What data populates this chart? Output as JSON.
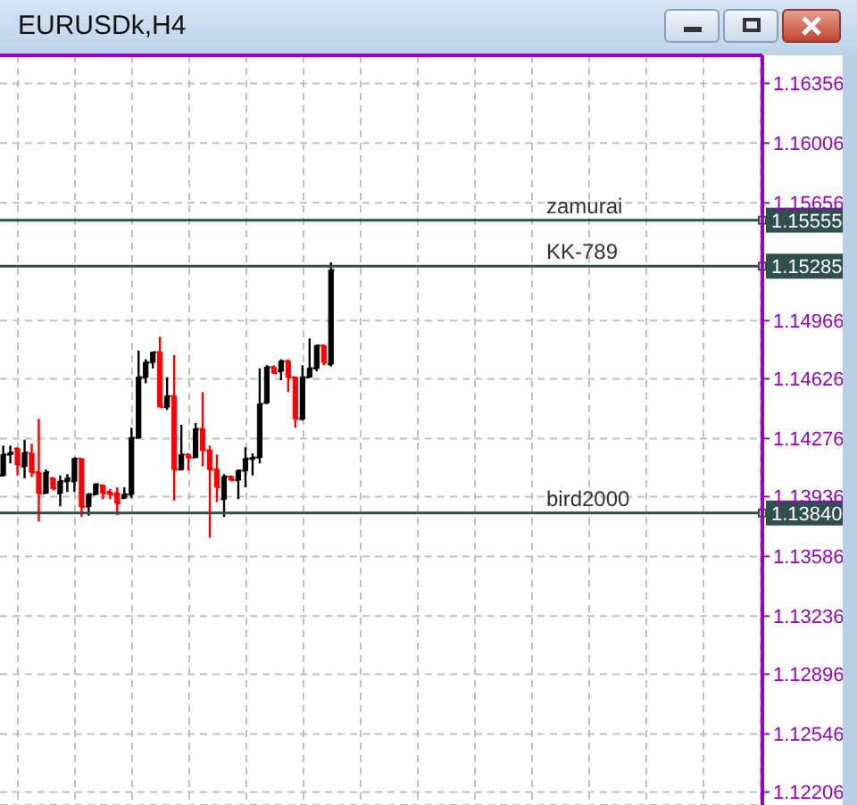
{
  "chart_data": {
    "type": "candlestick",
    "title": "EURUSDk,H4",
    "categories": [
      null,
      null,
      null,
      null,
      null,
      null,
      null,
      null,
      null,
      null,
      null,
      null,
      null,
      null,
      null,
      null,
      null,
      null,
      null,
      null,
      null,
      null,
      null,
      null,
      null,
      null,
      null,
      null,
      null,
      null,
      null,
      null,
      null,
      null,
      null,
      null,
      null,
      null,
      null,
      null,
      null,
      null,
      null,
      null,
      null,
      null,
      null,
      null,
      null,
      null,
      null,
      null,
      null,
      null,
      null,
      null,
      null,
      null,
      null,
      null,
      null,
      null,
      null,
      null,
      null,
      null,
      null,
      null,
      null,
      null,
      null,
      null,
      null,
      null,
      null,
      null,
      null,
      null,
      null,
      null,
      null,
      null,
      null,
      null,
      null,
      null,
      null,
      null,
      null,
      null,
      null,
      null,
      null,
      null,
      null,
      null,
      null,
      null,
      null,
      null,
      null,
      null,
      null,
      null,
      null,
      null,
      null
    ],
    "ohlc": [
      [
        1.1406,
        1.14235,
        1.14053,
        1.14182
      ],
      [
        1.14182,
        1.14235,
        1.1413,
        1.14193
      ],
      [
        1.14217,
        1.14224,
        1.1406,
        1.14123
      ],
      [
        1.14113,
        1.14269,
        1.14043,
        1.14193
      ],
      [
        1.14189,
        1.14245,
        1.1405,
        1.14078
      ],
      [
        1.14078,
        1.14391,
        1.13789,
        1.13956
      ],
      [
        1.13956,
        1.14095,
        1.13956,
        1.14078
      ],
      [
        1.14043,
        1.1405,
        1.13973,
        1.13984
      ],
      [
        1.13956,
        1.1406,
        1.13879,
        1.14026
      ],
      [
        1.14026,
        1.14067,
        1.13963,
        1.14043
      ],
      [
        1.14026,
        1.14165,
        1.13963,
        1.14158
      ],
      [
        1.14158,
        1.14158,
        1.13817,
        1.13876
      ],
      [
        1.13879,
        1.13956,
        1.13824,
        1.13949
      ],
      [
        1.13949,
        1.14015,
        1.13946,
        1.14008
      ],
      [
        1.14001,
        1.14008,
        1.13921,
        1.13956
      ],
      [
        1.13963,
        1.1398,
        1.13921,
        1.13949
      ],
      [
        1.13956,
        1.13991,
        1.13827,
        1.13897
      ],
      [
        1.13928,
        1.13991,
        1.13921,
        1.13949
      ],
      [
        1.13949,
        1.14339,
        1.13928,
        1.1428
      ],
      [
        1.1428,
        1.14792,
        1.14276,
        1.14635
      ],
      [
        1.14635,
        1.1474,
        1.146,
        1.14722
      ],
      [
        1.14722,
        1.14785,
        1.14687,
        1.14781
      ],
      [
        1.14781,
        1.14872,
        1.14461,
        1.14461
      ],
      [
        1.14461,
        1.14635,
        1.14444,
        1.14524
      ],
      [
        1.14524,
        1.14764,
        1.13914,
        1.14095
      ],
      [
        1.14095,
        1.14357,
        1.14088,
        1.14182
      ],
      [
        1.14182,
        1.14189,
        1.14088,
        1.14165
      ],
      [
        1.14165,
        1.14367,
        1.14165,
        1.14332
      ],
      [
        1.14332,
        1.14548,
        1.14113,
        1.14207
      ],
      [
        1.14207,
        1.14235,
        1.13695,
        1.14095
      ],
      [
        1.14095,
        1.14182,
        1.13904,
        1.13991
      ],
      [
        1.13921,
        1.14067,
        1.13817,
        1.14053
      ],
      [
        1.14053,
        1.1406,
        1.14026,
        1.14033
      ],
      [
        1.14033,
        1.14095,
        1.13921,
        1.14088
      ],
      [
        1.14088,
        1.14224,
        1.13991,
        1.14158
      ],
      [
        1.14158,
        1.14189,
        1.1406,
        1.14165
      ],
      [
        1.14165,
        1.14687,
        1.1413,
        1.14478
      ],
      [
        1.14485,
        1.14705,
        1.14478,
        1.14694
      ],
      [
        1.14694,
        1.14705,
        1.14653,
        1.1466
      ],
      [
        1.1467,
        1.1474,
        1.14618,
        1.14729
      ],
      [
        1.14729,
        1.1474,
        1.14548,
        1.14635
      ],
      [
        1.14635,
        1.14635,
        1.14339,
        1.14391
      ],
      [
        1.14391,
        1.14705,
        1.14381,
        1.14635
      ],
      [
        1.14635,
        1.14862,
        1.14635,
        1.14687
      ],
      [
        1.14687,
        1.14827,
        1.1467,
        1.1482
      ],
      [
        1.1482,
        1.14827,
        1.14705,
        1.14722
      ],
      [
        1.14712,
        1.15307,
        1.14698,
        1.15262
      ],
      null,
      null,
      null,
      null,
      null,
      null,
      null,
      null,
      null,
      null,
      null,
      null,
      null,
      null,
      null,
      null,
      null,
      null,
      null,
      null,
      null,
      null,
      null,
      null,
      null,
      null,
      null,
      null,
      null,
      null,
      null,
      null,
      null,
      null,
      null,
      null,
      null,
      null,
      null,
      null,
      null,
      null,
      null,
      null,
      null,
      null,
      null,
      null,
      null,
      null,
      null,
      null,
      null,
      null,
      null,
      null,
      null,
      null,
      null,
      null
    ],
    "colors": [
      "#000000",
      "#000000",
      "#ff0000",
      "#000000",
      "#ff0000",
      "#ff0000",
      "#000000",
      "#ff0000",
      "#000000",
      "#000000",
      "#000000",
      "#ff0000",
      "#000000",
      "#000000",
      "#ff0000",
      "#ff0000",
      "#ff0000",
      "#000000",
      "#000000",
      "#000000",
      "#000000",
      "#000000",
      "#ff0000",
      "#000000",
      "#ff0000",
      "#000000",
      "#ff0000",
      "#000000",
      "#ff0000",
      "#ff0000",
      "#ff0000",
      "#000000",
      "#ff0000",
      "#000000",
      "#000000",
      "#000000",
      "#000000",
      "#000000",
      "#ff0000",
      "#000000",
      "#ff0000",
      "#ff0000",
      "#000000",
      "#000000",
      "#000000",
      "#ff0000",
      "#000000",
      null,
      null,
      null,
      null,
      null,
      null,
      null,
      null,
      null,
      null,
      null,
      null,
      null,
      null,
      null,
      null,
      null,
      null,
      null,
      null,
      null,
      null,
      null,
      null,
      null,
      null,
      null,
      null,
      null,
      null,
      null,
      null,
      null,
      null,
      null,
      null,
      null,
      null,
      null,
      null,
      null,
      null,
      null,
      null,
      null,
      null,
      null,
      null,
      null,
      null,
      null,
      null,
      null,
      null,
      null,
      null,
      null,
      null,
      null,
      null
    ],
    "ylim": [
      1.1213,
      1.1652
    ],
    "yticks": [
      1.12206,
      1.12546,
      1.12896,
      1.13236,
      1.13586,
      1.13936,
      1.14276,
      1.14626,
      1.14966,
      1.15656,
      1.16006,
      1.16356
    ],
    "ref_lines": [
      {
        "axis": "y",
        "value": 1.15555,
        "label": "zamurai",
        "color": "#2f4f4f"
      },
      {
        "axis": "y",
        "value": 1.15285,
        "label": "KK-789",
        "color": "#2f4f4f"
      },
      {
        "axis": "y",
        "value": 1.1384,
        "label": "bird2000",
        "color": "#2f4f4f"
      }
    ],
    "annotations": [
      {
        "text": "1.15555",
        "y": 1.15555
      },
      {
        "text": "1.15285",
        "y": 1.15285
      },
      {
        "text": "1.13840",
        "y": 1.1384
      }
    ],
    "grid": true,
    "tick_labels": "y"
  }
}
